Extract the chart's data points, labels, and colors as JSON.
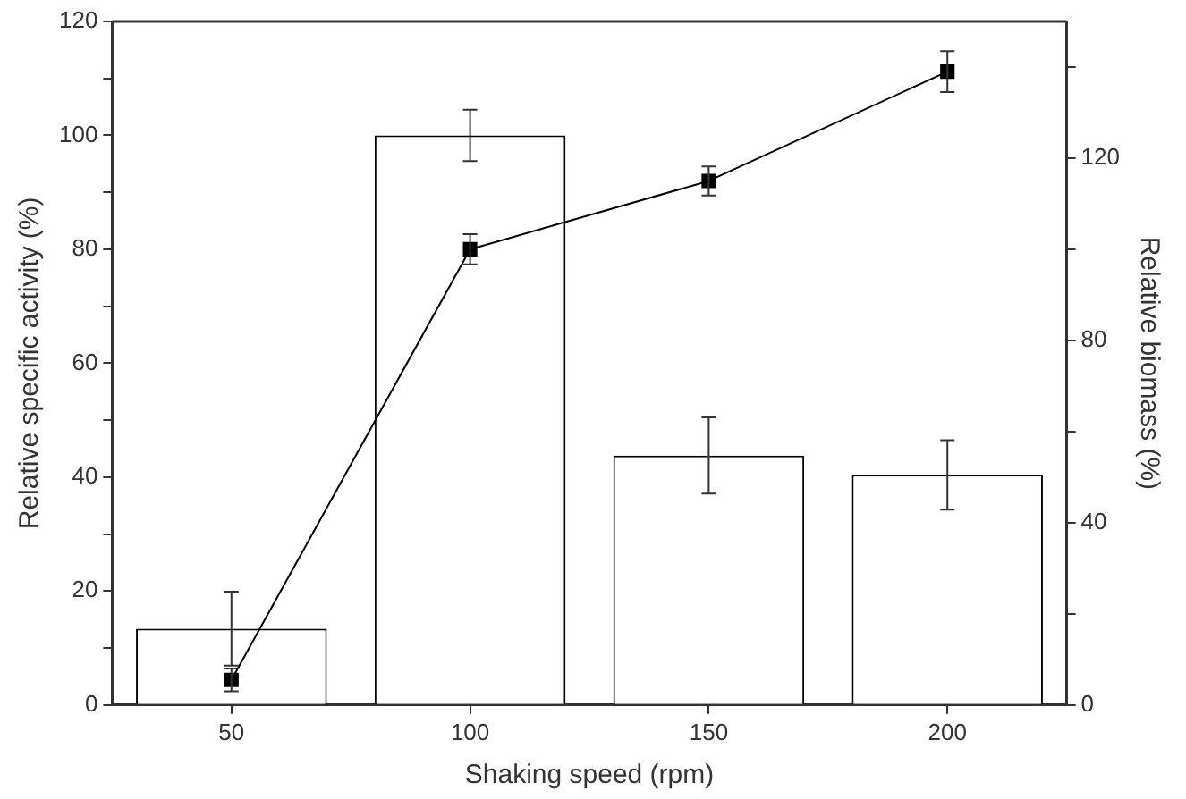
{
  "chart_data": {
    "type": "bar",
    "xlabel": "Shaking speed (rpm)",
    "ylabel": "Relative specific activity (%)",
    "y2label": "Relative biomass (%)",
    "categories": [
      "50",
      "100",
      "150",
      "200"
    ],
    "series": [
      {
        "color": "#ffffff",
        "values": [
          13.4,
          100,
          43.8,
          40.4
        ],
        "errors": [
          6.5,
          4.5,
          6.7,
          6.1
        ]
      },
      {
        "type": "line",
        "axis": "y2",
        "color": "#000000",
        "values": [
          5.5,
          100,
          115,
          139
        ],
        "errors": [
          2.5,
          3.3,
          3.2,
          4.5
        ]
      }
    ],
    "marker": "square",
    "line_style": "solid",
    "grid": false,
    "legend": false,
    "ylim": [
      0,
      120
    ],
    "yticks": [
      0,
      {
        "value": 10,
        "label": null
      },
      20,
      {
        "value": 30,
        "label": null
      },
      40,
      {
        "value": 50,
        "label": null
      },
      60,
      {
        "value": 70,
        "label": null
      },
      80,
      {
        "value": 90,
        "label": null
      },
      100,
      {
        "value": 110,
        "label": null
      },
      120
    ],
    "y2lim": [
      0,
      150
    ],
    "y2ticks": [
      0,
      {
        "value": 20,
        "label": null
      },
      40,
      {
        "value": 60,
        "label": null
      },
      80,
      {
        "value": 100,
        "label": null
      },
      120,
      {
        "value": 140,
        "label": null
      }
    ]
  }
}
